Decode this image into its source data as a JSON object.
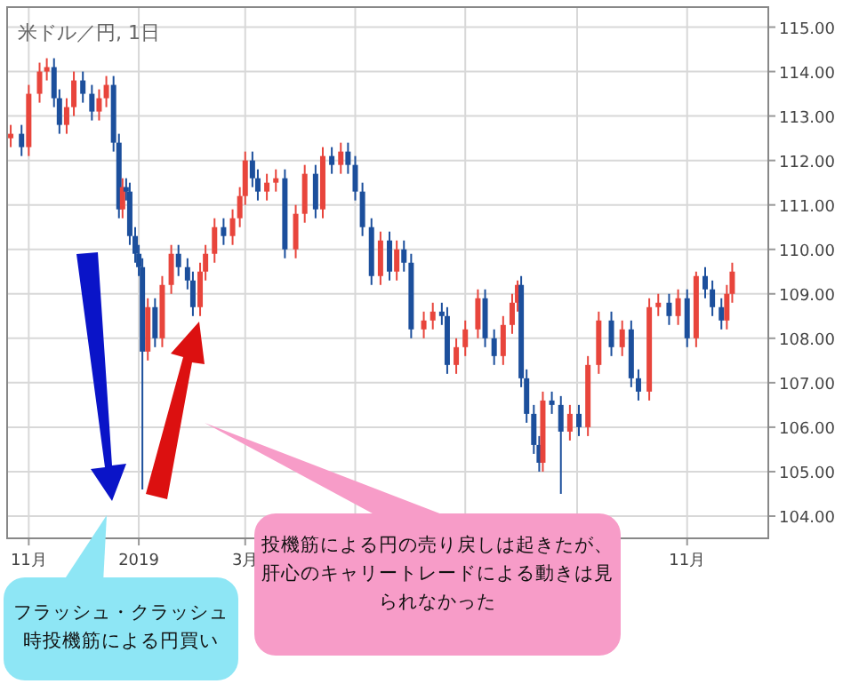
{
  "chart_data": {
    "type": "candlestick",
    "title": "米ドル／円, 1日",
    "x": [
      "2018-10-22",
      "2018-10-28",
      "2018-11-01",
      "2018-11-07",
      "2018-11-11",
      "2018-11-15",
      "2018-11-18",
      "2018-11-22",
      "2018-11-26",
      "2018-12-01",
      "2018-12-06",
      "2018-12-10",
      "2018-12-14",
      "2018-12-18",
      "2018-12-21",
      "2018-12-23",
      "2018-12-25",
      "2018-12-27",
      "2018-12-30",
      "2019-01-01",
      "2019-01-03",
      "2019-01-06",
      "2019-01-10",
      "2019-01-14",
      "2019-01-19",
      "2019-01-23",
      "2019-01-28",
      "2019-01-31",
      "2019-02-04",
      "2019-02-07",
      "2019-02-12",
      "2019-02-17",
      "2019-02-22",
      "2019-02-26",
      "2019-03-01",
      "2019-03-05",
      "2019-03-08",
      "2019-03-13",
      "2019-03-18",
      "2019-03-23",
      "2019-03-29",
      "2019-04-03",
      "2019-04-09",
      "2019-04-13",
      "2019-04-18",
      "2019-04-23",
      "2019-04-27",
      "2019-05-01",
      "2019-05-05",
      "2019-05-10",
      "2019-05-15",
      "2019-05-20",
      "2019-05-24",
      "2019-05-28",
      "2019-06-01",
      "2019-06-08",
      "2019-06-13",
      "2019-06-18",
      "2019-06-21",
      "2019-06-26",
      "2019-07-01",
      "2019-07-08",
      "2019-07-12",
      "2019-07-17",
      "2019-07-22",
      "2019-07-27",
      "2019-07-30",
      "2019-08-01",
      "2019-08-04",
      "2019-08-08",
      "2019-08-11",
      "2019-08-13",
      "2019-08-18",
      "2019-08-23",
      "2019-08-28",
      "2019-09-02",
      "2019-09-07",
      "2019-09-13",
      "2019-09-20",
      "2019-09-26",
      "2019-10-01",
      "2019-10-05",
      "2019-10-11",
      "2019-10-16",
      "2019-10-22",
      "2019-10-27",
      "2019-11-01",
      "2019-11-06",
      "2019-11-11",
      "2019-11-15",
      "2019-11-20",
      "2019-11-23",
      "2019-11-26"
    ],
    "ohlc": [
      [
        112.5,
        112.8,
        112.3,
        112.6
      ],
      [
        112.6,
        112.8,
        112.1,
        112.3
      ],
      [
        112.3,
        113.7,
        112.1,
        113.5
      ],
      [
        113.5,
        114.2,
        113.3,
        114.0
      ],
      [
        114.0,
        114.3,
        113.8,
        114.1
      ],
      [
        114.1,
        114.3,
        113.2,
        113.4
      ],
      [
        113.4,
        113.6,
        112.6,
        112.8
      ],
      [
        112.8,
        113.4,
        112.6,
        113.2
      ],
      [
        113.2,
        114.0,
        113.0,
        113.8
      ],
      [
        113.8,
        114.0,
        113.3,
        113.5
      ],
      [
        113.5,
        113.7,
        112.9,
        113.1
      ],
      [
        113.1,
        113.6,
        112.9,
        113.4
      ],
      [
        113.4,
        113.9,
        113.2,
        113.7
      ],
      [
        113.7,
        113.9,
        112.2,
        112.4
      ],
      [
        112.4,
        112.6,
        110.7,
        110.9
      ],
      [
        110.9,
        111.6,
        110.7,
        111.4
      ],
      [
        111.4,
        111.6,
        111.1,
        111.3
      ],
      [
        111.3,
        111.5,
        110.1,
        110.3
      ],
      [
        110.3,
        110.5,
        109.7,
        109.9
      ],
      [
        109.9,
        110.1,
        109.4,
        109.6
      ],
      [
        109.6,
        109.8,
        104.6,
        107.7
      ],
      [
        107.7,
        108.9,
        107.5,
        108.7
      ],
      [
        108.7,
        108.9,
        107.8,
        108.0
      ],
      [
        108.0,
        109.4,
        107.8,
        109.2
      ],
      [
        109.2,
        110.1,
        109.0,
        109.9
      ],
      [
        109.9,
        110.1,
        109.4,
        109.6
      ],
      [
        109.6,
        109.8,
        109.1,
        109.3
      ],
      [
        109.3,
        109.5,
        108.5,
        108.7
      ],
      [
        108.7,
        109.7,
        108.5,
        109.5
      ],
      [
        109.5,
        110.1,
        109.3,
        109.9
      ],
      [
        109.9,
        110.7,
        109.7,
        110.5
      ],
      [
        110.5,
        110.7,
        110.1,
        110.3
      ],
      [
        110.3,
        110.9,
        110.1,
        110.7
      ],
      [
        110.7,
        111.4,
        110.5,
        111.2
      ],
      [
        111.2,
        112.2,
        111.0,
        112.0
      ],
      [
        112.0,
        112.2,
        111.4,
        111.6
      ],
      [
        111.6,
        111.8,
        111.1,
        111.3
      ],
      [
        111.3,
        111.7,
        111.1,
        111.5
      ],
      [
        111.5,
        111.8,
        111.3,
        111.6
      ],
      [
        111.6,
        111.8,
        109.8,
        110.0
      ],
      [
        110.0,
        111.0,
        109.8,
        110.8
      ],
      [
        110.8,
        111.9,
        110.6,
        111.7
      ],
      [
        111.7,
        111.9,
        110.7,
        110.9
      ],
      [
        110.9,
        112.3,
        110.7,
        112.1
      ],
      [
        112.1,
        112.3,
        111.7,
        111.9
      ],
      [
        111.9,
        112.4,
        111.7,
        112.2
      ],
      [
        112.2,
        112.4,
        111.7,
        111.9
      ],
      [
        111.9,
        112.1,
        111.1,
        111.3
      ],
      [
        111.3,
        111.5,
        110.3,
        110.5
      ],
      [
        110.5,
        110.7,
        109.2,
        109.4
      ],
      [
        109.4,
        110.4,
        109.2,
        110.2
      ],
      [
        110.2,
        110.4,
        109.3,
        109.5
      ],
      [
        109.5,
        110.2,
        109.3,
        110.0
      ],
      [
        110.0,
        110.2,
        109.5,
        109.7
      ],
      [
        109.7,
        109.9,
        108.0,
        108.2
      ],
      [
        108.2,
        108.6,
        108.0,
        108.4
      ],
      [
        108.4,
        108.8,
        108.2,
        108.6
      ],
      [
        108.6,
        108.8,
        108.3,
        108.5
      ],
      [
        108.5,
        108.7,
        107.2,
        107.4
      ],
      [
        107.4,
        108.0,
        107.2,
        107.8
      ],
      [
        107.8,
        108.4,
        107.6,
        108.2
      ],
      [
        108.2,
        109.1,
        108.0,
        108.9
      ],
      [
        108.9,
        109.1,
        107.8,
        108.0
      ],
      [
        108.0,
        108.2,
        107.4,
        107.6
      ],
      [
        107.6,
        108.5,
        107.4,
        108.3
      ],
      [
        108.3,
        109.0,
        108.1,
        108.8
      ],
      [
        108.8,
        109.3,
        108.6,
        109.2
      ],
      [
        109.2,
        109.4,
        106.9,
        107.1
      ],
      [
        107.1,
        107.3,
        106.1,
        106.3
      ],
      [
        106.3,
        106.5,
        105.4,
        105.6
      ],
      [
        105.6,
        105.8,
        105.0,
        105.2
      ],
      [
        105.2,
        106.8,
        105.0,
        106.6
      ],
      [
        106.6,
        106.8,
        106.3,
        106.5
      ],
      [
        106.5,
        106.7,
        104.5,
        105.9
      ],
      [
        105.9,
        106.5,
        105.7,
        106.3
      ],
      [
        106.3,
        106.5,
        105.8,
        106.0
      ],
      [
        106.0,
        107.6,
        105.8,
        107.4
      ],
      [
        107.4,
        108.6,
        107.2,
        108.4
      ],
      [
        108.4,
        108.6,
        107.6,
        107.8
      ],
      [
        107.8,
        108.4,
        107.6,
        108.2
      ],
      [
        108.2,
        108.4,
        106.9,
        107.1
      ],
      [
        107.1,
        107.3,
        106.6,
        106.8
      ],
      [
        106.8,
        108.9,
        106.6,
        108.7
      ],
      [
        108.7,
        109.0,
        108.5,
        108.8
      ],
      [
        108.8,
        109.0,
        108.3,
        108.5
      ],
      [
        108.5,
        109.1,
        108.3,
        108.9
      ],
      [
        108.9,
        109.1,
        107.8,
        108.0
      ],
      [
        108.0,
        109.5,
        107.8,
        109.4
      ],
      [
        109.4,
        109.6,
        108.9,
        109.1
      ],
      [
        109.1,
        109.3,
        108.5,
        108.7
      ],
      [
        108.7,
        108.9,
        108.2,
        108.4
      ],
      [
        108.4,
        109.2,
        108.2,
        109.0
      ],
      [
        109.0,
        109.7,
        108.8,
        109.5
      ]
    ],
    "colors": [
      "#e8453c",
      "#1c4f9c",
      "#e8453c",
      "#e8453c",
      "#e8453c",
      "#1c4f9c",
      "#1c4f9c",
      "#e8453c",
      "#e8453c",
      "#1c4f9c",
      "#1c4f9c",
      "#e8453c",
      "#e8453c",
      "#1c4f9c",
      "#1c4f9c",
      "#e8453c",
      "#1c4f9c",
      "#1c4f9c",
      "#1c4f9c",
      "#1c4f9c",
      "#1c4f9c",
      "#e8453c",
      "#1c4f9c",
      "#e8453c",
      "#e8453c",
      "#1c4f9c",
      "#1c4f9c",
      "#1c4f9c",
      "#e8453c",
      "#e8453c",
      "#e8453c",
      "#1c4f9c",
      "#e8453c",
      "#e8453c",
      "#e8453c",
      "#1c4f9c",
      "#1c4f9c",
      "#e8453c",
      "#e8453c",
      "#1c4f9c",
      "#e8453c",
      "#e8453c",
      "#1c4f9c",
      "#e8453c",
      "#1c4f9c",
      "#e8453c",
      "#1c4f9c",
      "#1c4f9c",
      "#1c4f9c",
      "#1c4f9c",
      "#e8453c",
      "#1c4f9c",
      "#e8453c",
      "#1c4f9c",
      "#1c4f9c",
      "#e8453c",
      "#e8453c",
      "#1c4f9c",
      "#1c4f9c",
      "#e8453c",
      "#e8453c",
      "#e8453c",
      "#1c4f9c",
      "#1c4f9c",
      "#e8453c",
      "#e8453c",
      "#e8453c",
      "#1c4f9c",
      "#1c4f9c",
      "#1c4f9c",
      "#1c4f9c",
      "#e8453c",
      "#1c4f9c",
      "#1c4f9c",
      "#e8453c",
      "#1c4f9c",
      "#e8453c",
      "#e8453c",
      "#1c4f9c",
      "#e8453c",
      "#1c4f9c",
      "#1c4f9c",
      "#e8453c",
      "#e8453c",
      "#1c4f9c",
      "#e8453c",
      "#1c4f9c",
      "#e8453c",
      "#1c4f9c",
      "#1c4f9c",
      "#1c4f9c",
      "#e8453c",
      "#e8453c"
    ],
    "xlim": [
      "2018-10-20",
      "2019-12-16"
    ],
    "xticks": [
      {
        "value": "2018-11-01",
        "label": "11月"
      },
      {
        "value": "2019-01-01",
        "label": "2019"
      },
      {
        "value": "2019-03-01",
        "label": "3月"
      },
      {
        "value": "2019-05-01",
        "label": null
      },
      {
        "value": "2019-07-01",
        "label": null
      },
      {
        "value": "2019-09-01",
        "label": null
      },
      {
        "value": "2019-11-01",
        "label": "11月"
      }
    ],
    "ylim": [
      103.5,
      115.45
    ],
    "yticks": [
      {
        "value": 104,
        "label": "104.00"
      },
      {
        "value": 105,
        "label": "105.00"
      },
      {
        "value": 106,
        "label": "106.00"
      },
      {
        "value": 107,
        "label": "107.00"
      },
      {
        "value": 108,
        "label": "108.00"
      },
      {
        "value": 109,
        "label": "109.00"
      },
      {
        "value": 110,
        "label": "110.00"
      },
      {
        "value": 111,
        "label": "111.00"
      },
      {
        "value": 112,
        "label": "112.00"
      },
      {
        "value": 113,
        "label": "113.00"
      },
      {
        "value": 114,
        "label": "114.00"
      },
      {
        "value": 115,
        "label": "115.00"
      }
    ],
    "grid": true,
    "annotations": [
      "フラッシュ・クラッシュ時投機筋による円買い",
      "投機筋による円の売り戻しは起きたが、肝心のキャリートレードによる動きは見られなかった"
    ]
  }
}
